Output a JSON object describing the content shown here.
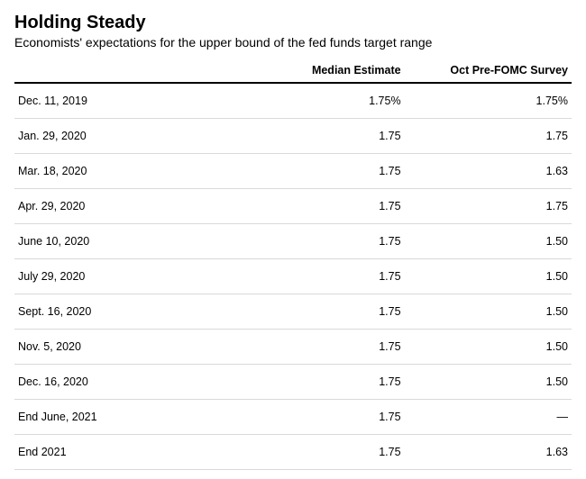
{
  "title": "Holding Steady",
  "subtitle": "Economists' expectations for the upper bound of the fed funds target range",
  "table": {
    "type": "table",
    "columns": [
      "",
      "Median Estimate",
      "Oct Pre-FOMC Survey"
    ],
    "rows": [
      {
        "date": "Dec. 11, 2019",
        "median": "1.75%",
        "oct": "1.75%"
      },
      {
        "date": "Jan. 29, 2020",
        "median": "1.75",
        "oct": "1.75"
      },
      {
        "date": "Mar. 18, 2020",
        "median": "1.75",
        "oct": "1.63"
      },
      {
        "date": "Apr. 29, 2020",
        "median": "1.75",
        "oct": "1.75"
      },
      {
        "date": "June 10, 2020",
        "median": "1.75",
        "oct": "1.50"
      },
      {
        "date": "July 29, 2020",
        "median": "1.75",
        "oct": "1.50"
      },
      {
        "date": "Sept. 16, 2020",
        "median": "1.75",
        "oct": "1.50"
      },
      {
        "date": "Nov. 5, 2020",
        "median": "1.75",
        "oct": "1.50"
      },
      {
        "date": "Dec. 16, 2020",
        "median": "1.75",
        "oct": "1.50"
      },
      {
        "date": "End June, 2021",
        "median": "1.75",
        "oct": "—"
      },
      {
        "date": "End 2021",
        "median": "1.75",
        "oct": "1.63"
      }
    ],
    "header_border_color": "#000000",
    "row_border_color": "#d9d9d9",
    "background_color": "#ffffff",
    "text_color": "#000000",
    "title_fontsize": 20,
    "subtitle_fontsize": 14,
    "body_fontsize": 12.5
  }
}
